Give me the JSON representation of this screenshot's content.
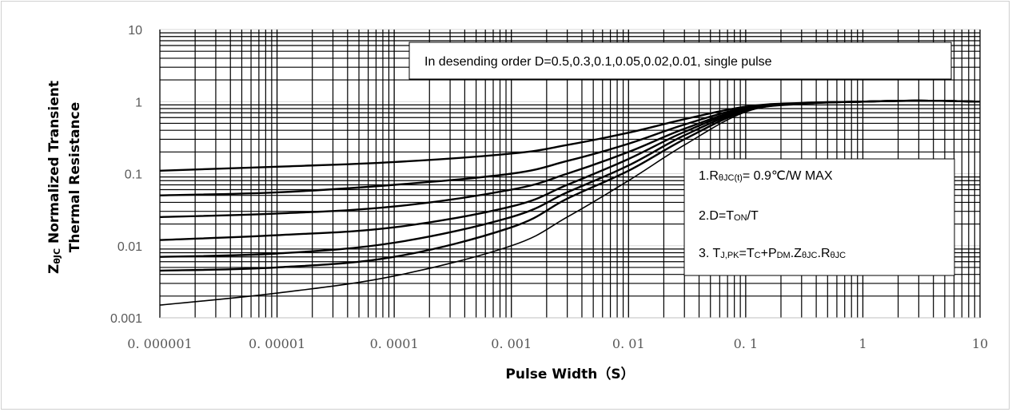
{
  "chart_data": {
    "type": "line",
    "title": "",
    "xlabel": "Pulse Width（S）",
    "ylabel": {
      "prefix": "Z",
      "prefix_sub": "θJC",
      "line1_rest": " Normalized Transient",
      "line2": "Thermal Resistance"
    },
    "xscale": "log",
    "yscale": "log",
    "xlim": [
      1e-06,
      10
    ],
    "ylim": [
      0.001,
      10
    ],
    "grid": true,
    "x_tick_labels": [
      "0. 000001",
      "0. 00001",
      "0. 0001",
      "0. 001",
      "0. 01",
      "0. 1",
      "1",
      "10"
    ],
    "y_tick_labels": [
      "0.001",
      "0.01",
      "0.1",
      "1",
      "10"
    ],
    "series": [
      {
        "x": [
          1e-06,
          1e-05,
          0.0001,
          0.001,
          0.003,
          0.01,
          0.03,
          0.1,
          0.3,
          1,
          3,
          10
        ],
        "values": [
          0.11,
          0.125,
          0.145,
          0.19,
          0.25,
          0.37,
          0.57,
          0.85,
          0.96,
          1.0,
          1.03,
          1.0
        ]
      },
      {
        "x": [
          1e-06,
          1e-05,
          0.0001,
          0.001,
          0.003,
          0.01,
          0.03,
          0.1,
          0.3,
          1,
          3,
          10
        ],
        "values": [
          0.05,
          0.055,
          0.07,
          0.1,
          0.15,
          0.26,
          0.48,
          0.82,
          0.95,
          1.0,
          1.03,
          1.0
        ]
      },
      {
        "x": [
          1e-06,
          1e-05,
          0.0001,
          0.001,
          0.003,
          0.01,
          0.03,
          0.1,
          0.3,
          1,
          3,
          10
        ],
        "values": [
          0.025,
          0.028,
          0.035,
          0.06,
          0.1,
          0.2,
          0.42,
          0.8,
          0.95,
          1.0,
          1.03,
          1.0
        ]
      },
      {
        "x": [
          1e-06,
          1e-05,
          0.0001,
          0.001,
          0.003,
          0.01,
          0.03,
          0.1,
          0.3,
          1,
          3,
          10
        ],
        "values": [
          0.012,
          0.014,
          0.018,
          0.035,
          0.07,
          0.16,
          0.38,
          0.78,
          0.94,
          1.0,
          1.03,
          1.0
        ]
      },
      {
        "x": [
          1e-06,
          1e-05,
          0.0001,
          0.001,
          0.003,
          0.01,
          0.03,
          0.1,
          0.3,
          1,
          3,
          10
        ],
        "values": [
          0.007,
          0.0078,
          0.011,
          0.025,
          0.055,
          0.13,
          0.34,
          0.76,
          0.94,
          1.0,
          1.03,
          1.0
        ]
      },
      {
        "x": [
          1e-06,
          1e-05,
          0.0001,
          0.001,
          0.003,
          0.01,
          0.03,
          0.1,
          0.3,
          1,
          3,
          10
        ],
        "values": [
          0.0045,
          0.005,
          0.007,
          0.018,
          0.045,
          0.11,
          0.3,
          0.74,
          0.93,
          1.0,
          1.03,
          1.0
        ]
      },
      {
        "x": [
          1e-06,
          1e-05,
          0.0001,
          0.001,
          0.003,
          0.01,
          0.03,
          0.1,
          0.3,
          1,
          3,
          10
        ],
        "values": [
          0.0015,
          0.0022,
          0.0038,
          0.01,
          0.025,
          0.08,
          0.25,
          0.72,
          0.93,
          1.0,
          1.03,
          1.0
        ]
      }
    ],
    "annotations": {
      "legend_text": "In desending order D=0.5,0.3,0.1,0.05,0.02,0.01, single pulse",
      "note1": {
        "a": "1.R",
        "b": "θJC(t)",
        "c": "= 0.9℃/W MAX"
      },
      "note2": {
        "a": "2.D=T",
        "b": "ON",
        "c": "/T"
      },
      "note3": {
        "a": "3. T",
        "b": "J,PK",
        "c": "=T",
        "d": "C",
        "e": "+P",
        "f": "DM",
        "g": ".Z",
        "h": "θJC",
        "i": ".R",
        "j": "θJC"
      }
    },
    "colors": {
      "curve": "#000000",
      "grid_major": "#000000",
      "grid_minor": "#000000",
      "axis_frame": "#bfbfbf",
      "tick_text": "#595959"
    }
  }
}
